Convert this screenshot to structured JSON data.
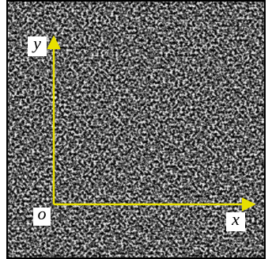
{
  "labels": {
    "y_axis": "y",
    "origin": "o",
    "x_axis": "x"
  }
}
